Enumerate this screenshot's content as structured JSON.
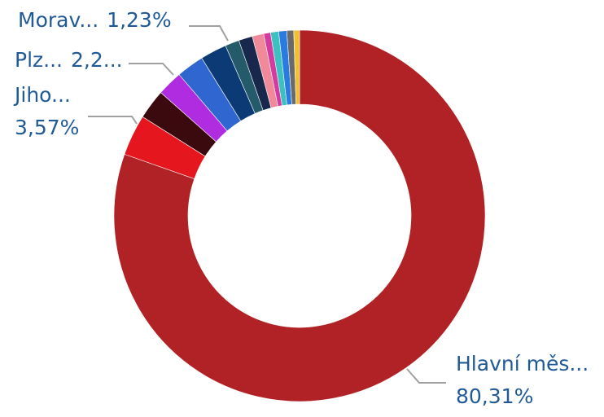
{
  "chart_data": {
    "type": "donut",
    "categories": [
      "Hlavní měs...",
      "Jiho...",
      null,
      "Plz...",
      null,
      null,
      "Morav...",
      null,
      null,
      null,
      null,
      null,
      null,
      null
    ],
    "values": [
      80.31,
      3.57,
      2.6,
      2.2,
      2.4,
      2.3,
      1.23,
      1.2,
      1.0,
      0.6,
      0.7,
      0.7,
      0.6,
      0.5
    ],
    "value_labels": [
      "80,31%",
      "3,57%",
      null,
      "2,2...",
      null,
      null,
      "1,23%",
      null,
      null,
      null,
      null,
      null,
      null,
      null
    ],
    "colors": [
      "#b02226",
      "#e5161d",
      "#3a0a0e",
      "#b02ce0",
      "#2f66cf",
      "#0c3a74",
      "#245a6a",
      "#17284c",
      "#f0899a",
      "#d43aa0",
      "#3cc0c0",
      "#2a7be0",
      "#6a6a6a",
      "#f0c030"
    ]
  }
}
